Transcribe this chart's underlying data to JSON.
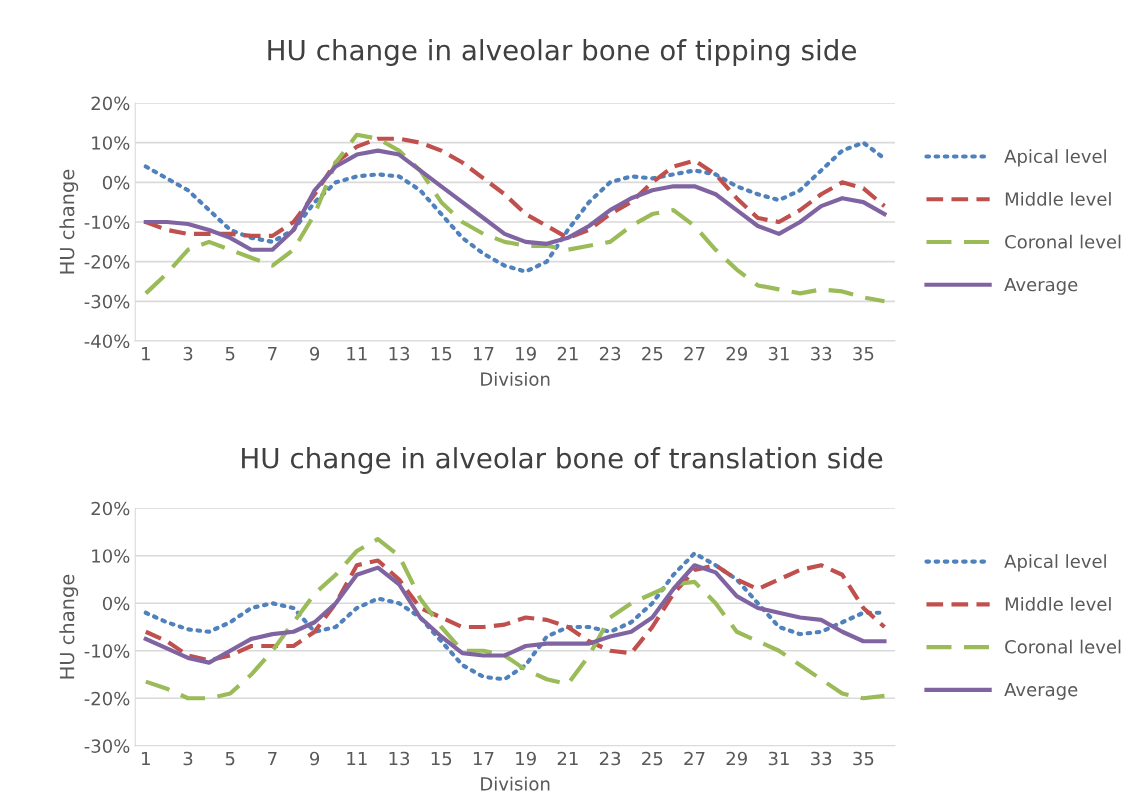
{
  "chart_data": [
    {
      "type": "line",
      "title": "HU change in alveolar bone of tipping side",
      "xlabel": "Division",
      "ylabel": "HU change",
      "categories": [
        "1",
        null,
        "3",
        null,
        "5",
        null,
        "7",
        null,
        "9",
        null,
        "11",
        null,
        "13",
        null,
        "15",
        null,
        "17",
        null,
        "19",
        null,
        "21",
        null,
        "23",
        null,
        "25",
        null,
        "27",
        null,
        "29",
        null,
        "31",
        null,
        "33",
        null,
        "35",
        null
      ],
      "ylim": [
        -40,
        20
      ],
      "yticks": [
        {
          "value": -40,
          "label": "-40%"
        },
        {
          "value": -30,
          "label": "-30%"
        },
        {
          "value": -20,
          "label": "-20%"
        },
        {
          "value": -10,
          "label": "-10%"
        },
        {
          "value": 0,
          "label": "0%"
        },
        {
          "value": 10,
          "label": "10%"
        },
        {
          "value": 20,
          "label": "20%"
        }
      ],
      "grid": "y",
      "legend": "right",
      "marker": "none",
      "series": [
        {
          "name": "Apical level",
          "color": "#4f81bd",
          "line_style": "dotted",
          "values": [
            4,
            1,
            -2,
            -7,
            -12,
            -14,
            -15,
            -12,
            -5,
            0,
            1.5,
            2,
            1.5,
            -2,
            -8,
            -14,
            -18,
            -21,
            -22.5,
            -20,
            -12,
            -5,
            0,
            1.5,
            1,
            2,
            3,
            2,
            -1,
            -3,
            -4.5,
            -2,
            3,
            8,
            10,
            6
          ]
        },
        {
          "name": "Middle level",
          "color": "#c0504d",
          "line_style": "dashed",
          "values": [
            -10,
            -12,
            -13,
            -13,
            -13,
            -13.5,
            -13.5,
            -10,
            -3,
            5,
            9,
            11,
            11,
            10,
            8,
            5,
            1,
            -3,
            -8,
            -11,
            -14,
            -12,
            -8,
            -5,
            0,
            4,
            5.5,
            2,
            -4,
            -9,
            -10,
            -7,
            -3,
            0,
            -1.5,
            -6
          ]
        },
        {
          "name": "Coronal level",
          "color": "#9bbb59",
          "line_style": "dashed",
          "values": [
            -28,
            -23,
            -17,
            -15,
            -17,
            -19,
            -21,
            -17,
            -8,
            5,
            12,
            11,
            8,
            3,
            -5,
            -10,
            -13,
            -15,
            -16,
            -16,
            -17,
            -16,
            -15,
            -11,
            -8,
            -7,
            -11,
            -17,
            -22,
            -26,
            -27,
            -28,
            -27,
            -27.5,
            -29,
            -30
          ]
        },
        {
          "name": "Average",
          "color": "#8064a2",
          "line_style": "solid",
          "values": [
            -10,
            -10,
            -10.5,
            -12,
            -14,
            -17,
            -17,
            -12,
            -2,
            4,
            7,
            8,
            7,
            3,
            -1,
            -5,
            -9,
            -13,
            -15,
            -15.5,
            -14,
            -11,
            -7,
            -4,
            -2,
            -1,
            -1,
            -3,
            -7,
            -11,
            -13,
            -10,
            -6,
            -4,
            -5,
            -8
          ]
        }
      ]
    },
    {
      "type": "line",
      "title": "HU change in alveolar bone of translation side",
      "xlabel": "Division",
      "ylabel": "HU change",
      "categories": [
        "1",
        null,
        "3",
        null,
        "5",
        null,
        "7",
        null,
        "9",
        null,
        "11",
        null,
        "13",
        null,
        "15",
        null,
        "17",
        null,
        "19",
        null,
        "21",
        null,
        "23",
        null,
        "25",
        null,
        "27",
        null,
        "29",
        null,
        "31",
        null,
        "33",
        null,
        "35",
        null
      ],
      "ylim": [
        -30,
        20
      ],
      "yticks": [
        {
          "value": -30,
          "label": "-30%"
        },
        {
          "value": -20,
          "label": "-20%"
        },
        {
          "value": -10,
          "label": "-10%"
        },
        {
          "value": 0,
          "label": "0%"
        },
        {
          "value": 10,
          "label": "10%"
        },
        {
          "value": 20,
          "label": "20%"
        }
      ],
      "grid": "y",
      "legend": "right",
      "marker": "none",
      "series": [
        {
          "name": "Apical level",
          "color": "#4f81bd",
          "line_style": "dotted",
          "values": [
            -2,
            -4,
            -5.5,
            -6,
            -4,
            -1,
            0,
            -1,
            -6,
            -5,
            -1,
            1,
            0,
            -3,
            -8,
            -13,
            -15.5,
            -16,
            -13,
            -7,
            -5,
            -5,
            -6,
            -4,
            0,
            6,
            10.5,
            8,
            5,
            0,
            -5,
            -6.5,
            -6,
            -4,
            -2,
            -2
          ]
        },
        {
          "name": "Middle level",
          "color": "#c0504d",
          "line_style": "dashed",
          "values": [
            -6,
            -8,
            -11,
            -12,
            -11,
            -9,
            -9,
            -9,
            -6,
            0,
            8,
            9,
            5,
            -1,
            -3,
            -5,
            -5,
            -4.5,
            -3,
            -3.5,
            -5,
            -8,
            -10,
            -10.5,
            -5,
            2,
            7,
            8,
            5,
            3,
            5,
            7,
            8,
            6,
            -1,
            -5
          ]
        },
        {
          "name": "Coronal level",
          "color": "#9bbb59",
          "line_style": "dashed",
          "values": [
            -16.5,
            -18,
            -20,
            -20,
            -19,
            -15,
            -10,
            -4,
            2,
            6,
            11,
            13.5,
            10,
            1,
            -5,
            -10,
            -10,
            -11,
            -14,
            -16,
            -17,
            -11,
            -3,
            0,
            2,
            4,
            4.5,
            0,
            -6,
            -8,
            -10,
            -13,
            -16,
            -19,
            -20,
            -19.5
          ]
        },
        {
          "name": "Average",
          "color": "#8064a2",
          "line_style": "solid",
          "values": [
            -7.5,
            -9.5,
            -11.5,
            -12.5,
            -10,
            -7.5,
            -6.5,
            -6,
            -4,
            0,
            6,
            7.5,
            4,
            -3,
            -7,
            -10.5,
            -11,
            -11,
            -9,
            -8.5,
            -8.5,
            -8.5,
            -7,
            -6,
            -3,
            3,
            8,
            6.5,
            1.5,
            -1,
            -2,
            -3,
            -3.5,
            -6,
            -8,
            -8
          ]
        }
      ]
    }
  ]
}
